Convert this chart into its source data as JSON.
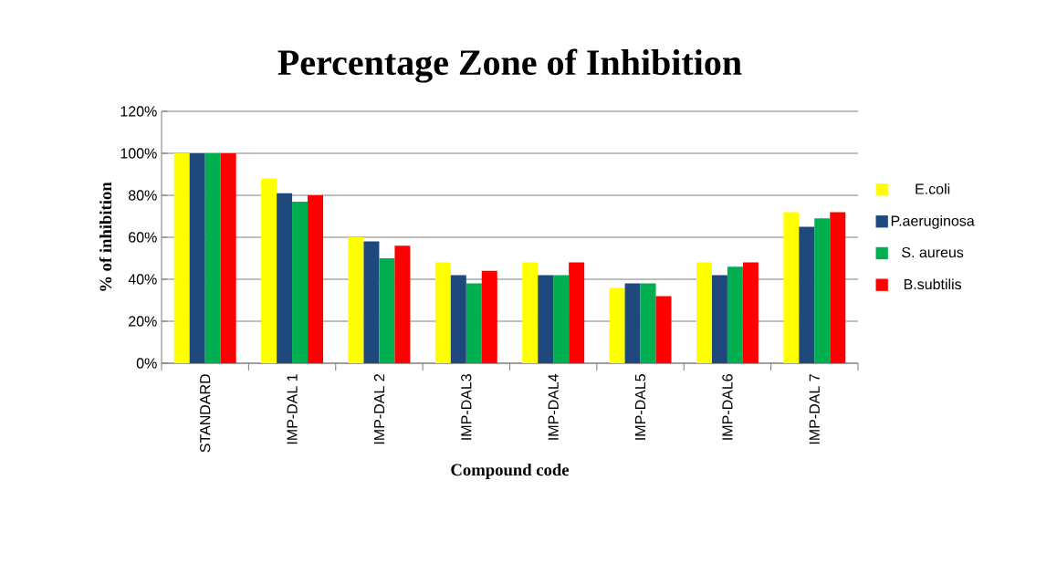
{
  "chart_data": {
    "type": "bar",
    "title": "Percentage Zone of Inhibition",
    "xlabel": "Compound code",
    "ylabel": "% of inhibition",
    "categories": [
      "STANDARD",
      "IMP-DAL 1",
      "IMP-DAL 2",
      "IMP-DAL3",
      "IMP-DAL4",
      "IMP-DAL5",
      "IMP-DAL6",
      "IMP-DAL 7"
    ],
    "series": [
      {
        "name": "E.coli",
        "color": "#ffff00",
        "values": [
          100,
          88,
          60,
          48,
          48,
          36,
          48,
          72
        ]
      },
      {
        "name": "P.aeruginosa",
        "color": "#1f497d",
        "values": [
          100,
          81,
          58,
          42,
          42,
          38,
          42,
          65
        ]
      },
      {
        "name": "S. aureus",
        "color": "#00b050",
        "values": [
          100,
          77,
          50,
          38,
          42,
          38,
          46,
          69
        ]
      },
      {
        "name": "B.subtilis",
        "color": "#ff0000",
        "values": [
          100,
          80,
          56,
          44,
          48,
          32,
          48,
          72
        ]
      }
    ],
    "ylim": [
      0,
      120
    ],
    "yticks": [
      {
        "value": 0,
        "label": "0%"
      },
      {
        "value": 20,
        "label": "20%"
      },
      {
        "value": 40,
        "label": "40%"
      },
      {
        "value": 60,
        "label": "60%"
      },
      {
        "value": 80,
        "label": "80%"
      },
      {
        "value": 100,
        "label": "100%"
      },
      {
        "value": 120,
        "label": "120%"
      }
    ],
    "grid": "y",
    "legend": "right"
  }
}
